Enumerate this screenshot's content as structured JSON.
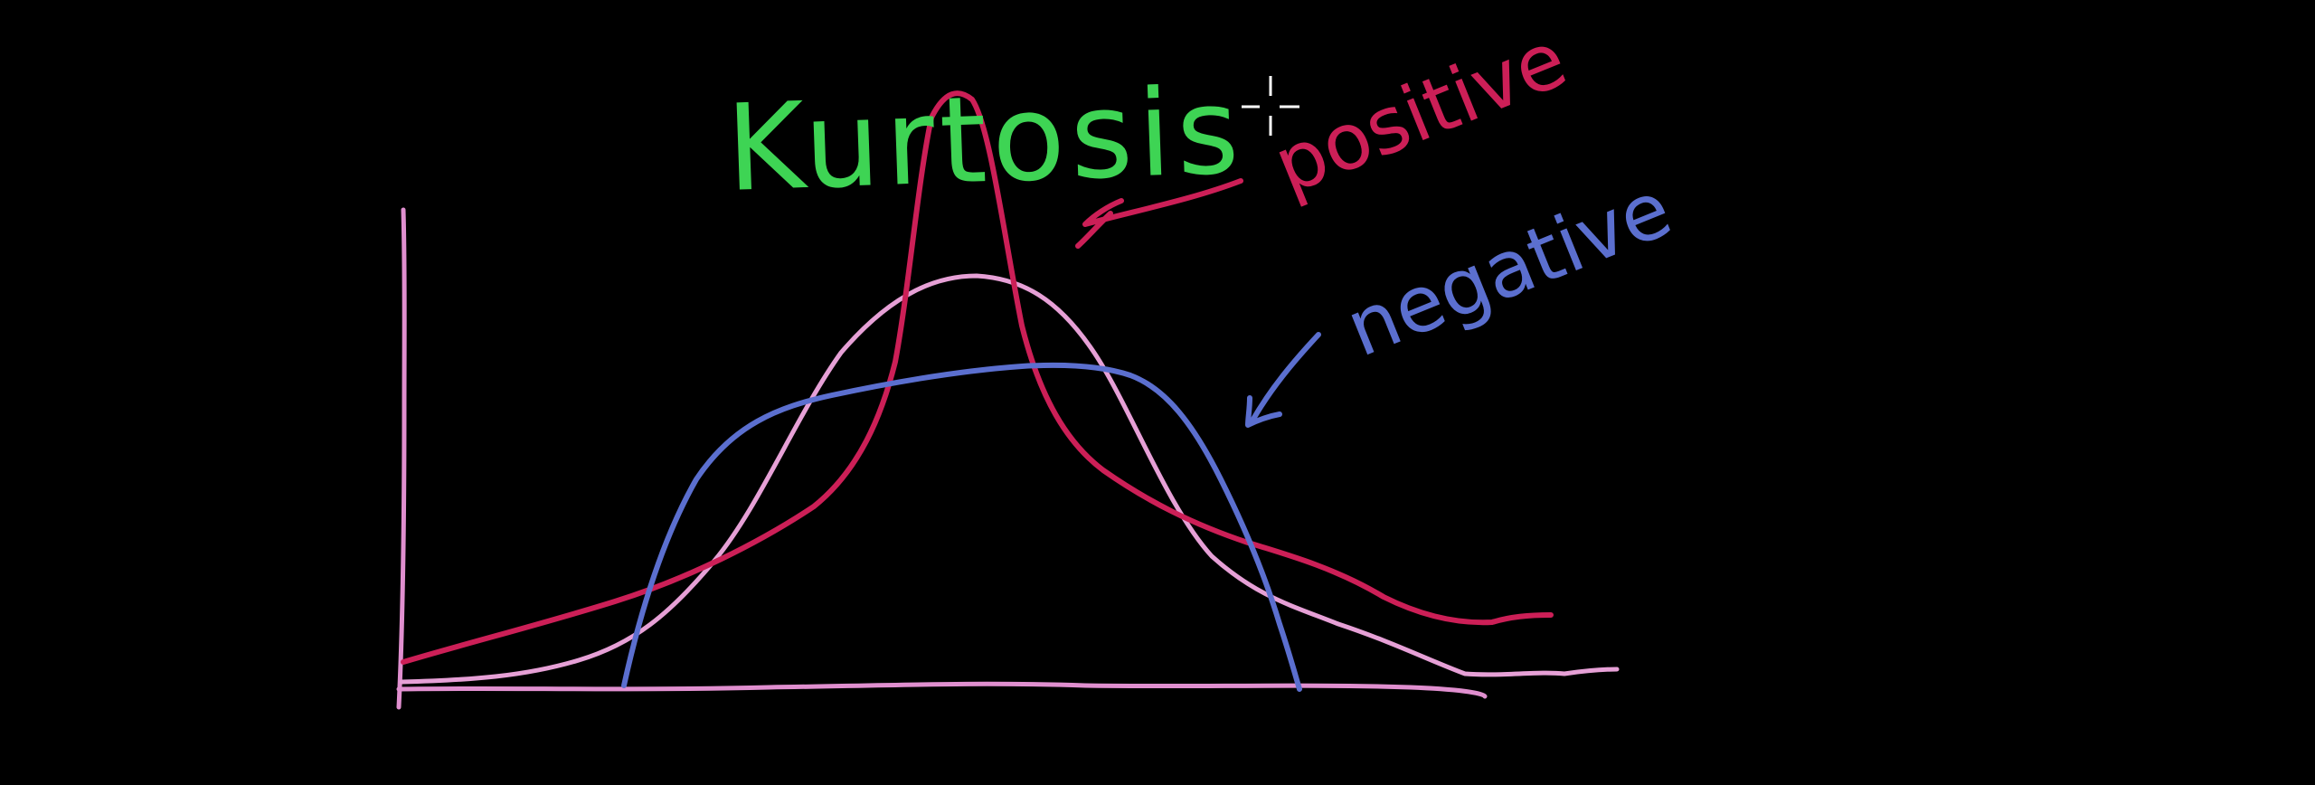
{
  "title": {
    "text": "Kurtosis",
    "color": "#3ed454"
  },
  "labels": {
    "positive": {
      "text": "positive",
      "color": "#cc1f57"
    },
    "negative": {
      "text": "negative",
      "color": "#5b6fcf"
    }
  },
  "colors": {
    "background": "#000000",
    "axes": "#e08fcf",
    "normal_curve": "#e6a0d6",
    "positive_curve": "#cc1f57",
    "negative_curve": "#5b6fcf",
    "cursor": "#ffffff"
  },
  "curves": [
    {
      "id": "normal",
      "kind": "normal distribution",
      "color_key": "normal_curve"
    },
    {
      "id": "positive",
      "kind": "peaked, heavy tails (positive kurtosis)",
      "color_key": "positive_curve"
    },
    {
      "id": "negative",
      "kind": "flat-topped, light tails (negative kurtosis)",
      "color_key": "negative_curve"
    }
  ],
  "cursor": {
    "icon": "crosshair-cursor-icon"
  }
}
